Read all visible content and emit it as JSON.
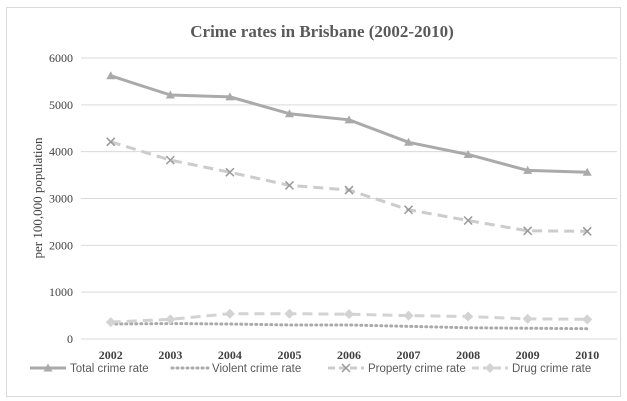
{
  "chart_data": {
    "type": "line",
    "title": "Crime rates in Brisbane (2002-2010)",
    "xlabel": "",
    "ylabel": "per 100,000 population",
    "ylim": [
      0,
      6000
    ],
    "yticks": [
      0,
      1000,
      2000,
      3000,
      4000,
      5000,
      6000
    ],
    "grid": "horizontal",
    "legend_position": "bottom",
    "categories": [
      "2002",
      "2003",
      "2004",
      "2005",
      "2006",
      "2007",
      "2008",
      "2009",
      "2010"
    ],
    "series": [
      {
        "name": "Total crime rate",
        "marker": "triangle",
        "dash": "solid",
        "color": "#aaaaaa",
        "values": [
          5620,
          5210,
          5170,
          4810,
          4680,
          4200,
          3940,
          3600,
          3560
        ]
      },
      {
        "name": "Violent crime rate",
        "marker": "none",
        "dash": "dotted",
        "color": "#aaaaaa",
        "values": [
          320,
          330,
          320,
          300,
          300,
          270,
          240,
          230,
          220
        ]
      },
      {
        "name": "Property crime rate",
        "marker": "cross",
        "dash": "dashed",
        "color": "#cccccc",
        "values": [
          4210,
          3820,
          3560,
          3280,
          3180,
          2760,
          2530,
          2310,
          2300
        ]
      },
      {
        "name": "Drug crime rate",
        "marker": "diamond",
        "dash": "dashed",
        "color": "#d3d3d3",
        "values": [
          360,
          420,
          540,
          540,
          530,
          500,
          480,
          430,
          420
        ]
      }
    ]
  }
}
